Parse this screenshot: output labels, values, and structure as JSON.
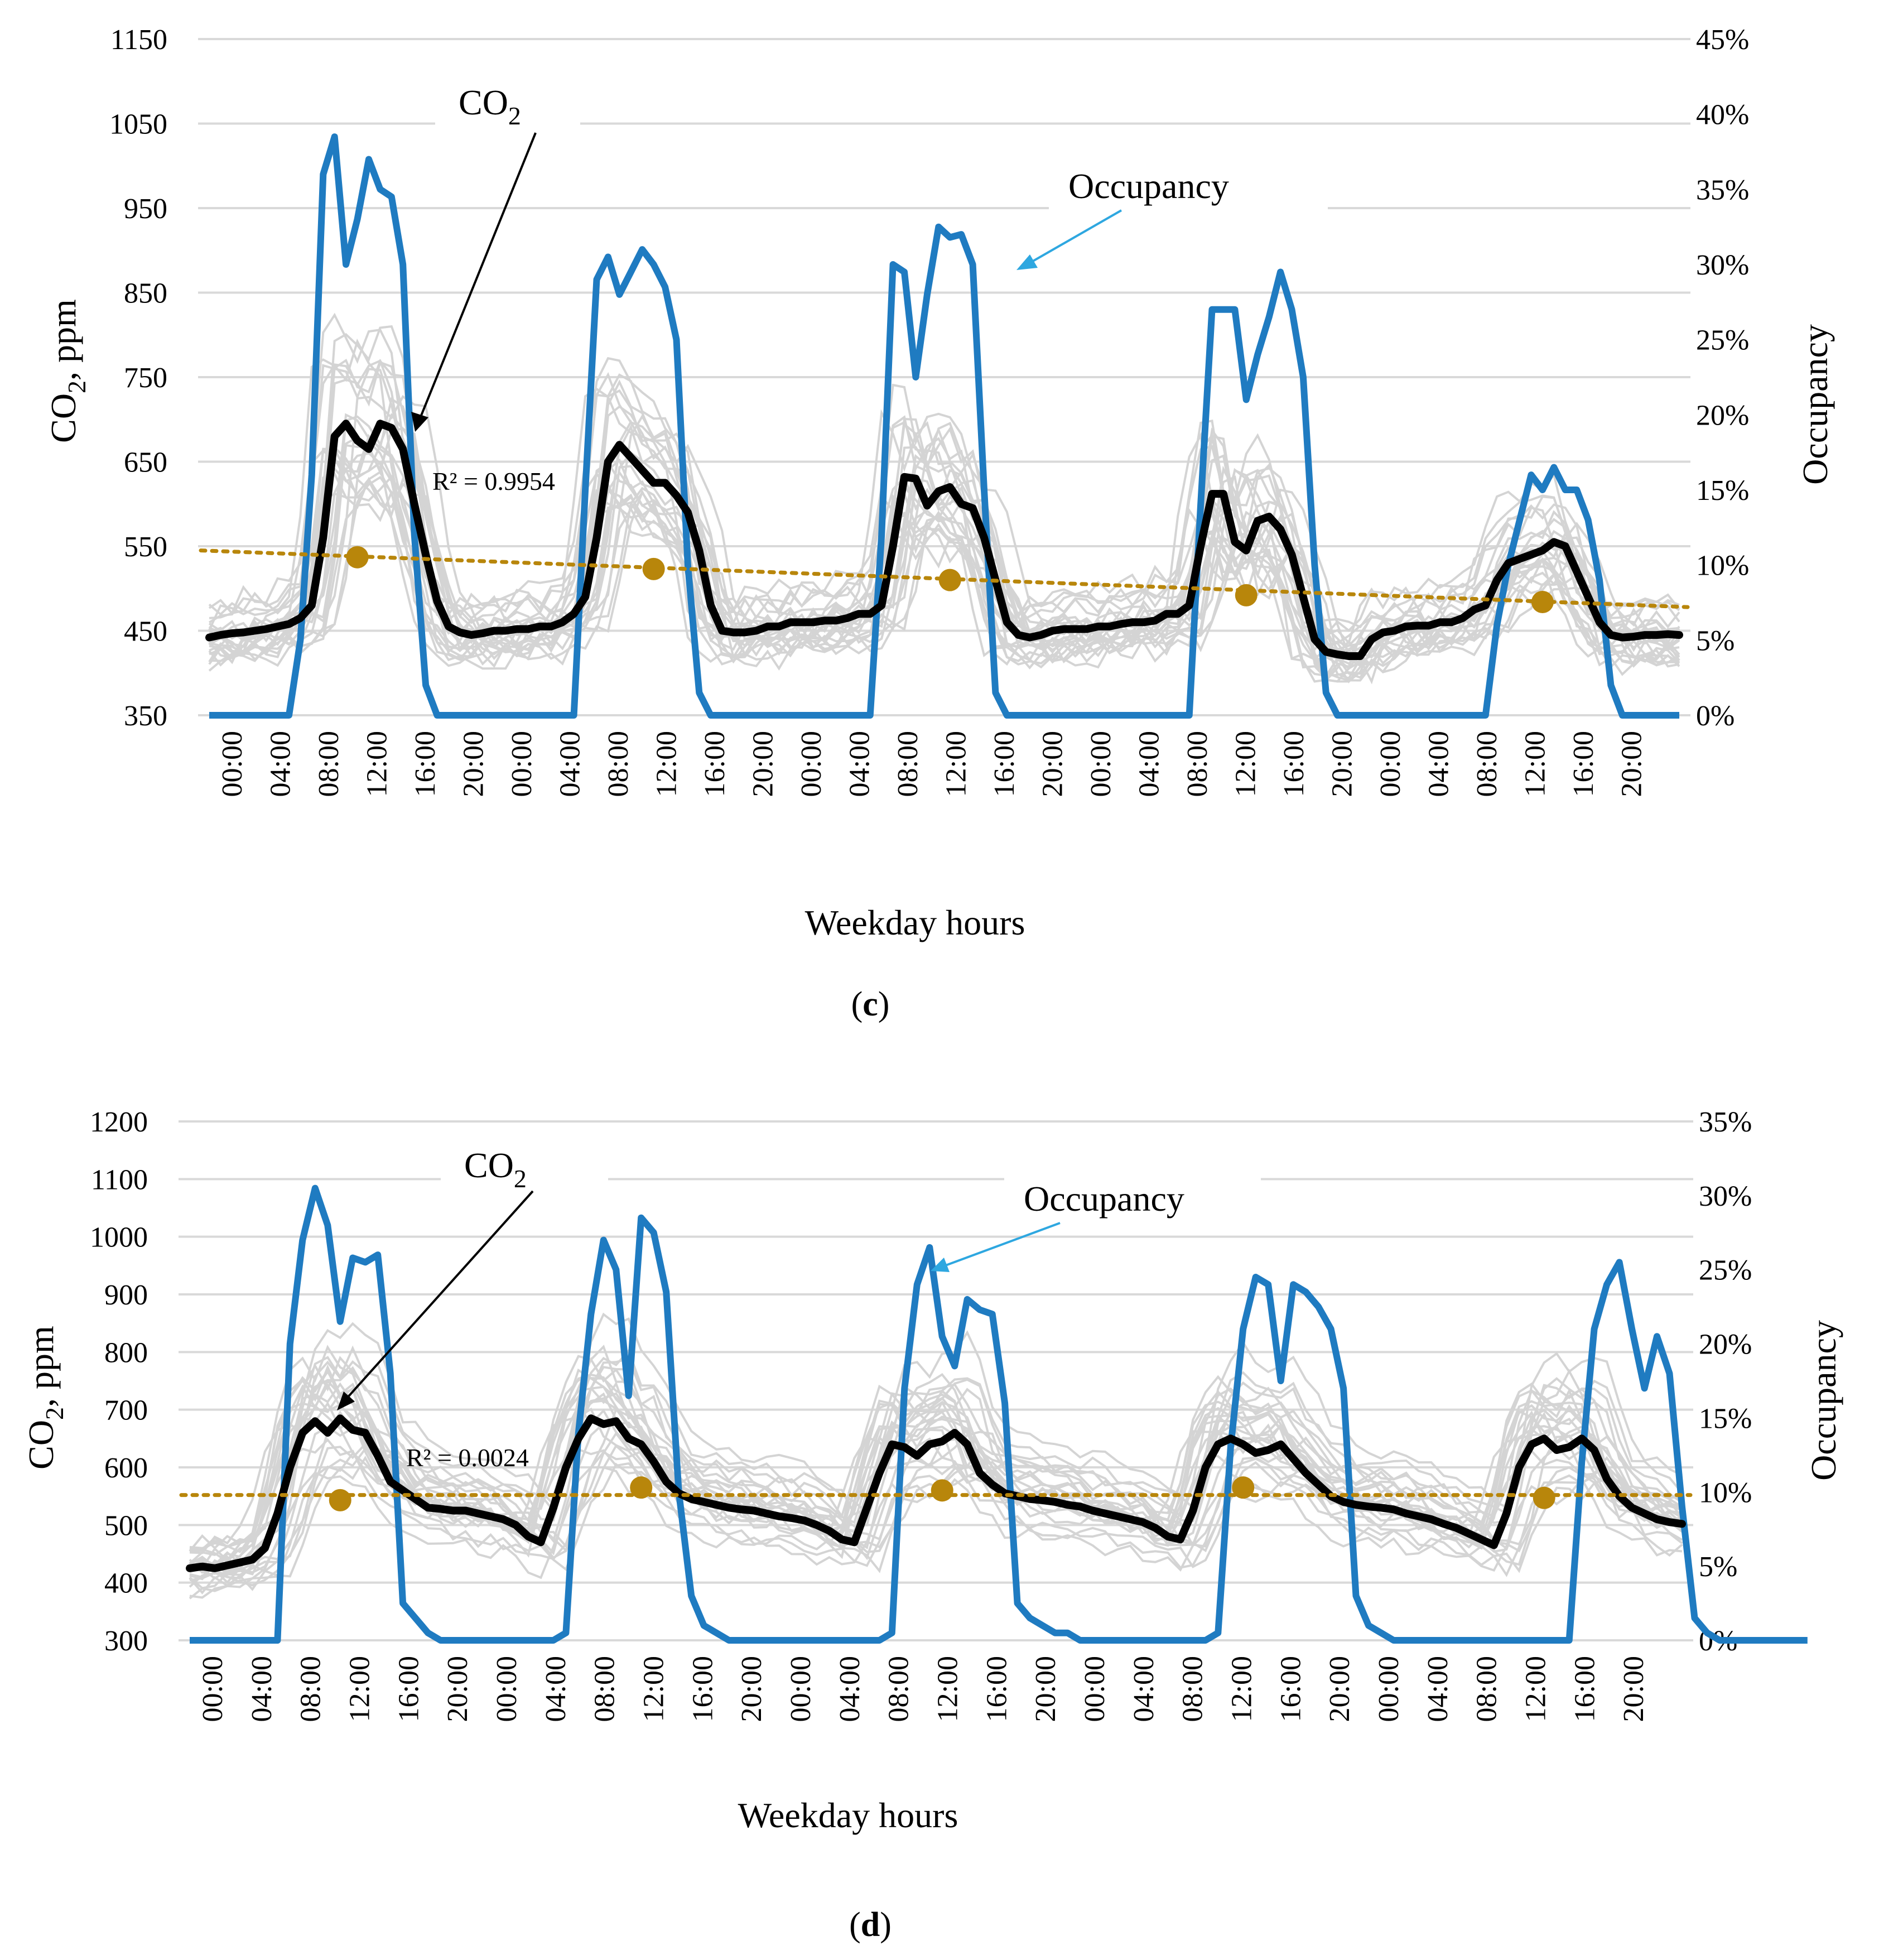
{
  "chart_data": [
    {
      "panel": "c",
      "type": "line",
      "caption": "(c)",
      "xlabel": "Weekday  hours",
      "ylabel_left": "CO2, ppm",
      "ylabel_right": "Occupancy",
      "ylim_left": [
        350,
        1150
      ],
      "yticks_left": [
        350,
        450,
        550,
        650,
        750,
        850,
        950,
        1050,
        1150
      ],
      "ylim_right": [
        0,
        45
      ],
      "yticks_right": [
        "0%",
        "5%",
        "10%",
        "15%",
        "20%",
        "25%",
        "30%",
        "35%",
        "40%",
        "45%"
      ],
      "x_tick_labels": [
        "00:00",
        "04:00",
        "08:00",
        "12:00",
        "16:00",
        "20:00",
        "00:00",
        "04:00",
        "08:00",
        "12:00",
        "16:00",
        "20:00",
        "00:00",
        "04:00",
        "08:00",
        "12:00",
        "16:00",
        "20:00",
        "00:00",
        "04:00",
        "08:00",
        "12:00",
        "16:00",
        "20:00",
        "00:00",
        "04:00",
        "08:00",
        "12:00",
        "16:00",
        "20:00"
      ],
      "annotations": {
        "co2": "CO",
        "co2_sub": "2",
        "occupancy": "Occupancy",
        "r2": "R² = 0.9954"
      },
      "series": [
        {
          "name": "CO2 mean",
          "axis": "left",
          "values": [
            442,
            445,
            447,
            448,
            450,
            452,
            455,
            458,
            465,
            480,
            560,
            680,
            695,
            675,
            665,
            695,
            690,
            665,
            600,
            540,
            485,
            455,
            448,
            445,
            447,
            450,
            450,
            452,
            452,
            455,
            455,
            460,
            470,
            490,
            560,
            650,
            670,
            655,
            640,
            625,
            625,
            610,
            590,
            545,
            480,
            450,
            448,
            448,
            450,
            455,
            455,
            460,
            460,
            460,
            462,
            462,
            465,
            470,
            470,
            480,
            550,
            632,
            630,
            598,
            615,
            620,
            600,
            595,
            560,
            510,
            460,
            445,
            442,
            445,
            450,
            452,
            452,
            452,
            455,
            455,
            458,
            460,
            460,
            462,
            470,
            470,
            480,
            550,
            612,
            612,
            555,
            545,
            580,
            585,
            570,
            540,
            490,
            440,
            425,
            422,
            420,
            420,
            440,
            448,
            450,
            455,
            456,
            456,
            460,
            460,
            465,
            475,
            480,
            510,
            530,
            535,
            540,
            545,
            555,
            550,
            520,
            490,
            460,
            445,
            442,
            443,
            445,
            445,
            446,
            445
          ]
        },
        {
          "name": "Occupancy",
          "axis": "right",
          "values": [
            0,
            0,
            0,
            0,
            0,
            0,
            0,
            0,
            5,
            16,
            36,
            38.5,
            30,
            33,
            37,
            35,
            34.5,
            30,
            12,
            2,
            0,
            0,
            0,
            0,
            0,
            0,
            0,
            0,
            0,
            0,
            0,
            0,
            0,
            15,
            29,
            30.5,
            28,
            29.5,
            31,
            30,
            28.5,
            25,
            10,
            1.5,
            0,
            0,
            0,
            0,
            0,
            0,
            0,
            0,
            0,
            0,
            0,
            0,
            0,
            0,
            0,
            12,
            30,
            29.5,
            22.5,
            28,
            32.5,
            31.8,
            32,
            30,
            15,
            1.5,
            0,
            0,
            0,
            0,
            0,
            0,
            0,
            0,
            0,
            0,
            0,
            0,
            0,
            0,
            0,
            0,
            0,
            14,
            27,
            27,
            27,
            21,
            24,
            26.5,
            29.5,
            27,
            22.5,
            10,
            1.5,
            0,
            0,
            0,
            0,
            0,
            0,
            0,
            0,
            0,
            0,
            0,
            0,
            0,
            0,
            6,
            10,
            13,
            16,
            15,
            16.5,
            15,
            15,
            13,
            9,
            2,
            0,
            0,
            0,
            0,
            0,
            0
          ]
        },
        {
          "name": "Daily mean points",
          "axis": "left",
          "values": [
            537,
            523,
            510,
            492,
            484
          ]
        },
        {
          "name": "Linear trend",
          "axis": "left",
          "values": [
            545,
            478
          ]
        }
      ]
    },
    {
      "panel": "d",
      "type": "line",
      "caption": "(d)",
      "xlabel": "Weekday  hours",
      "ylabel_left": "CO2, ppm",
      "ylabel_right": "Occupancy",
      "ylim_left": [
        300,
        1200
      ],
      "yticks_left": [
        300,
        400,
        500,
        600,
        700,
        800,
        900,
        1000,
        1100,
        1200
      ],
      "ylim_right": [
        0,
        35
      ],
      "yticks_right": [
        "0%",
        "5%",
        "10%",
        "15%",
        "20%",
        "25%",
        "30%",
        "35%"
      ],
      "x_tick_labels": [
        "00:00",
        "04:00",
        "08:00",
        "12:00",
        "16:00",
        "20:00",
        "00:00",
        "04:00",
        "08:00",
        "12:00",
        "16:00",
        "20:00",
        "00:00",
        "04:00",
        "08:00",
        "12:00",
        "16:00",
        "20:00",
        "00:00",
        "04:00",
        "08:00",
        "12:00",
        "16:00",
        "20:00",
        "00:00",
        "04:00",
        "08:00",
        "12:00",
        "16:00",
        "20:00"
      ],
      "annotations": {
        "co2": "CO",
        "co2_sub": "2",
        "occupancy": "Occupancy",
        "r2": "R² = 0.0024"
      },
      "series": [
        {
          "name": "CO2 mean",
          "axis": "left",
          "values": [
            425,
            428,
            425,
            430,
            435,
            440,
            460,
            520,
            600,
            660,
            680,
            660,
            685,
            665,
            660,
            620,
            575,
            560,
            545,
            530,
            528,
            525,
            525,
            520,
            515,
            510,
            500,
            480,
            470,
            530,
            600,
            650,
            685,
            675,
            680,
            650,
            640,
            610,
            575,
            555,
            545,
            540,
            535,
            530,
            527,
            525,
            520,
            515,
            512,
            508,
            500,
            490,
            475,
            470,
            530,
            590,
            640,
            635,
            620,
            640,
            645,
            660,
            640,
            590,
            570,
            555,
            550,
            545,
            543,
            540,
            535,
            532,
            525,
            520,
            515,
            510,
            505,
            495,
            480,
            475,
            525,
            600,
            640,
            650,
            640,
            625,
            630,
            640,
            615,
            590,
            570,
            550,
            540,
            535,
            532,
            530,
            527,
            520,
            515,
            510,
            502,
            495,
            485,
            475,
            465,
            520,
            600,
            640,
            650,
            630,
            635,
            650,
            630,
            580,
            550,
            530,
            520,
            510,
            505,
            502
          ]
        },
        {
          "name": "Occupancy",
          "axis": "right",
          "values": [
            0,
            0,
            0,
            0,
            0,
            0,
            0,
            0,
            20,
            27,
            30.5,
            28,
            21.5,
            25.8,
            25.5,
            26,
            18,
            2.5,
            1.5,
            0.5,
            0,
            0,
            0,
            0,
            0,
            0,
            0,
            0,
            0,
            0,
            0.5,
            14,
            22,
            27,
            25,
            16.5,
            28.5,
            27.5,
            23.5,
            10,
            3,
            1,
            0.5,
            0,
            0,
            0,
            0,
            0,
            0,
            0,
            0,
            0,
            0,
            0,
            0,
            0,
            0.5,
            17,
            24,
            26.5,
            20.5,
            18.5,
            23,
            22.3,
            22,
            16,
            2.5,
            1.5,
            1,
            0.5,
            0.5,
            0,
            0,
            0,
            0,
            0,
            0,
            0,
            0,
            0,
            0,
            0,
            0.5,
            13,
            21,
            24.5,
            24,
            17.5,
            24,
            23.5,
            22.5,
            21,
            17,
            3,
            1,
            0.5,
            0,
            0,
            0,
            0,
            0,
            0,
            0,
            0,
            0,
            0,
            0,
            0,
            0,
            0,
            0,
            12,
            21,
            24,
            25.5,
            21,
            17,
            20.5,
            18,
            9,
            1.5,
            0.5,
            0,
            0,
            0,
            0,
            0,
            0,
            0,
            0
          ]
        },
        {
          "name": "Daily mean points",
          "axis": "left",
          "values": [
            543,
            565,
            560,
            565,
            547
          ]
        },
        {
          "name": "Linear trend",
          "axis": "left",
          "values": [
            552,
            552
          ]
        }
      ]
    }
  ]
}
